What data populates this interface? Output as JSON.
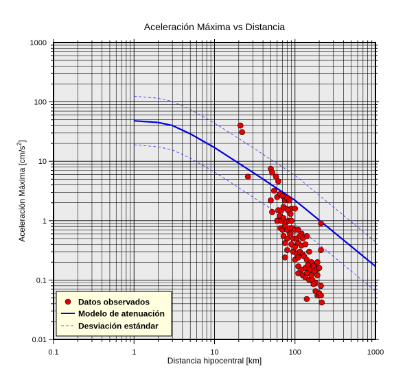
{
  "chart_data": {
    "type": "scatter",
    "title": "Aceleración Máxima vs Distancia",
    "xlabel": "Distancia hipocentral [km]",
    "ylabel_main": "Aceleración Máxima [cm/s",
    "ylabel_sup": "2",
    "ylabel_end": "]",
    "xscale": "log",
    "yscale": "log",
    "xlim": [
      0.1,
      1000
    ],
    "ylim": [
      0.01,
      1000
    ],
    "xticks": [
      0.1,
      1,
      10,
      100,
      1000
    ],
    "xtick_labels": [
      "0.1",
      "1",
      "10",
      "100",
      "1000"
    ],
    "yticks": [
      0.01,
      0.1,
      1,
      10,
      100,
      1000
    ],
    "ytick_labels": [
      "0.01",
      "0.1",
      "1",
      "10",
      "100",
      "1000"
    ],
    "grid": true,
    "legend_position": "bottom-left",
    "colors": {
      "plot_background": "#ebebeb",
      "points": "#e60000",
      "model": "#0000e6",
      "deviation": "#3333ff",
      "legend_background": "#ffffe0"
    },
    "series": [
      {
        "name": "Datos observados",
        "type": "scatter",
        "points": [
          [
            21,
            40
          ],
          [
            22,
            31
          ],
          [
            26,
            5.5
          ],
          [
            50,
            7.5
          ],
          [
            52,
            6.5
          ],
          [
            58,
            5.5
          ],
          [
            62,
            4.6
          ],
          [
            55,
            3.2
          ],
          [
            50,
            2.2
          ],
          [
            60,
            2.5
          ],
          [
            65,
            2.8
          ],
          [
            70,
            2.6
          ],
          [
            75,
            2.2
          ],
          [
            80,
            2.4
          ],
          [
            85,
            2.2
          ],
          [
            90,
            1.6
          ],
          [
            100,
            1.6
          ],
          [
            52,
            1.4
          ],
          [
            62,
            1.5
          ],
          [
            68,
            1.5
          ],
          [
            72,
            1.7
          ],
          [
            78,
            1.6
          ],
          [
            82,
            1.5
          ],
          [
            88,
            1.3
          ],
          [
            60,
            1.0
          ],
          [
            65,
            1.2
          ],
          [
            68,
            1.0
          ],
          [
            72,
            1.1
          ],
          [
            78,
            0.95
          ],
          [
            84,
            1.0
          ],
          [
            90,
            1.0
          ],
          [
            66,
            0.75
          ],
          [
            70,
            0.7
          ],
          [
            75,
            0.8
          ],
          [
            80,
            0.7
          ],
          [
            86,
            0.75
          ],
          [
            92,
            0.75
          ],
          [
            100,
            0.7
          ],
          [
            110,
            0.7
          ],
          [
            120,
            0.6
          ],
          [
            72,
            0.55
          ],
          [
            80,
            0.5
          ],
          [
            88,
            0.6
          ],
          [
            95,
            0.5
          ],
          [
            105,
            0.5
          ],
          [
            115,
            0.55
          ],
          [
            125,
            0.5
          ],
          [
            140,
            0.55
          ],
          [
            75,
            0.42
          ],
          [
            90,
            0.4
          ],
          [
            100,
            0.36
          ],
          [
            110,
            0.42
          ],
          [
            120,
            0.38
          ],
          [
            135,
            0.4
          ],
          [
            80,
            0.32
          ],
          [
            95,
            0.3
          ],
          [
            105,
            0.28
          ],
          [
            115,
            0.3
          ],
          [
            125,
            0.27
          ],
          [
            150,
            0.3
          ],
          [
            75,
            0.24
          ],
          [
            100,
            0.22
          ],
          [
            110,
            0.24
          ],
          [
            130,
            0.25
          ],
          [
            140,
            0.22
          ],
          [
            160,
            0.2
          ],
          [
            175,
            0.18
          ],
          [
            190,
            0.2
          ],
          [
            210,
            0.32
          ],
          [
            110,
            0.17
          ],
          [
            120,
            0.15
          ],
          [
            135,
            0.16
          ],
          [
            145,
            0.18
          ],
          [
            155,
            0.15
          ],
          [
            170,
            0.17
          ],
          [
            185,
            0.15
          ],
          [
            200,
            0.16
          ],
          [
            110,
            0.13
          ],
          [
            125,
            0.12
          ],
          [
            140,
            0.13
          ],
          [
            160,
            0.12
          ],
          [
            175,
            0.14
          ],
          [
            190,
            0.12
          ],
          [
            135,
            0.11
          ],
          [
            150,
            0.1
          ],
          [
            165,
            0.1
          ],
          [
            180,
            0.09
          ],
          [
            210,
            0.08
          ],
          [
            170,
            0.085
          ],
          [
            180,
            0.065
          ],
          [
            190,
            0.055
          ],
          [
            200,
            0.06
          ],
          [
            210,
            0.055
          ],
          [
            140,
            0.048
          ],
          [
            215,
            0.042
          ],
          [
            210,
            0.9
          ]
        ]
      },
      {
        "name": "Modelo de atenuación",
        "type": "line",
        "points": [
          [
            1,
            48
          ],
          [
            2,
            45
          ],
          [
            3,
            40
          ],
          [
            5,
            29
          ],
          [
            10,
            17
          ],
          [
            30,
            6.5
          ],
          [
            100,
            2.2
          ],
          [
            300,
            0.65
          ],
          [
            1000,
            0.17
          ]
        ]
      },
      {
        "name": "Desviación estándar",
        "type": "dashed",
        "upper": [
          [
            1,
            125
          ],
          [
            2,
            115
          ],
          [
            3,
            102
          ],
          [
            5,
            75
          ],
          [
            10,
            44
          ],
          [
            30,
            17
          ],
          [
            100,
            5.8
          ],
          [
            300,
            1.7
          ],
          [
            1000,
            0.44
          ]
        ],
        "lower": [
          [
            1,
            19
          ],
          [
            2,
            17.5
          ],
          [
            3,
            15.5
          ],
          [
            5,
            11.3
          ],
          [
            10,
            6.6
          ],
          [
            30,
            2.5
          ],
          [
            100,
            0.86
          ],
          [
            300,
            0.25
          ],
          [
            1000,
            0.065
          ]
        ]
      }
    ]
  }
}
